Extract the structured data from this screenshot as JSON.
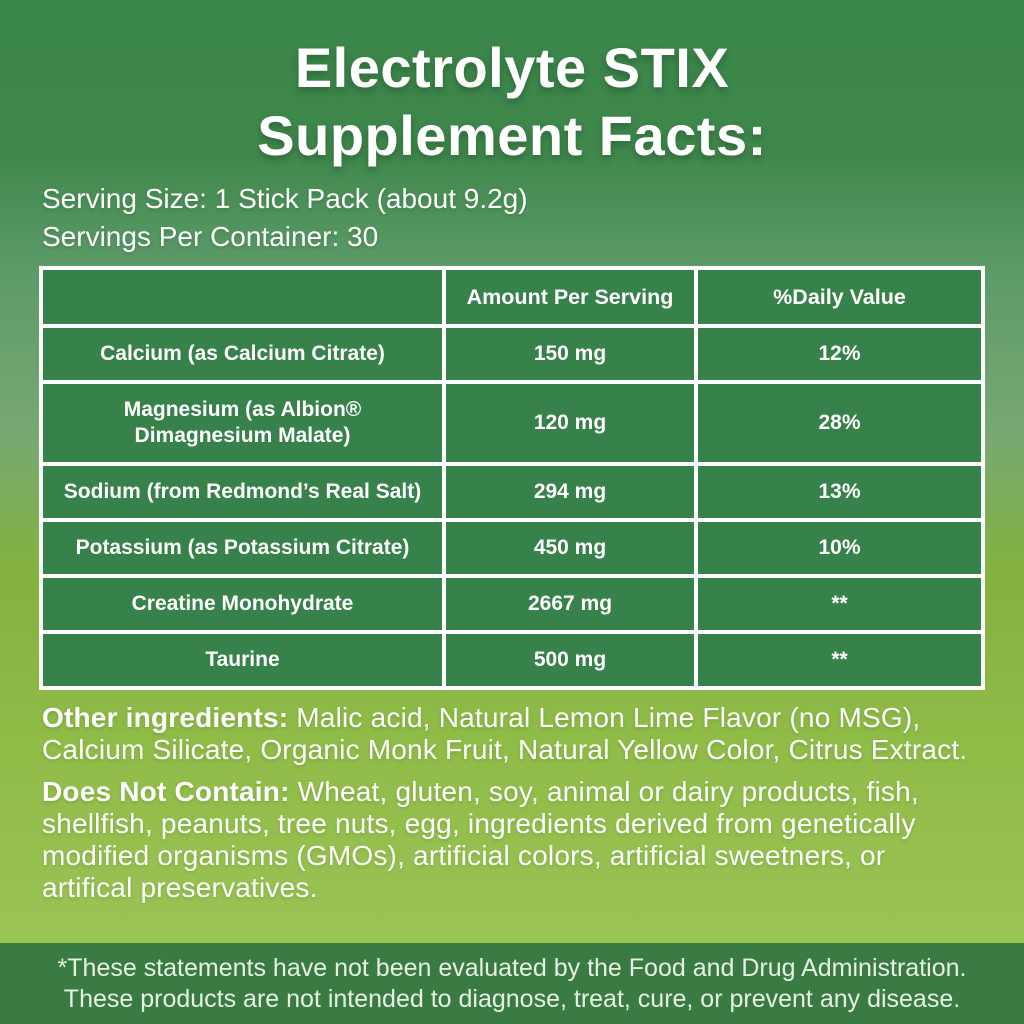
{
  "title": {
    "line1": "Electrolyte STIX",
    "line2": "Supplement Facts:"
  },
  "serving_info": {
    "serving_size": "Serving Size: 1 Stick Pack (about 9.2g)",
    "servings_per_container": "Servings Per Container: 30"
  },
  "supplement_table": {
    "headers": {
      "nutrient": "",
      "amount": "Amount Per Serving",
      "daily_value": "%Daily Value"
    },
    "rows": [
      {
        "name": "Calcium (as Calcium Citrate)",
        "amount": "150 mg",
        "daily_value": "12%"
      },
      {
        "name": "Magnesium (as Albion® Dimagnesium Malate)",
        "amount": "120 mg",
        "daily_value": "28%"
      },
      {
        "name": "Sodium (from Redmond’s Real Salt)",
        "amount": "294 mg",
        "daily_value": "13%"
      },
      {
        "name": "Potassium (as Potassium Citrate)",
        "amount": "450 mg",
        "daily_value": "10%"
      },
      {
        "name": "Creatine Monohydrate",
        "amount": "2667 mg",
        "daily_value": "**"
      },
      {
        "name": "Taurine",
        "amount": "500 mg",
        "daily_value": "**"
      }
    ]
  },
  "other_ingredients": {
    "label": "Other ingredients:",
    "text": "Malic acid, Natural Lemon Lime Flavor (no MSG), Calcium Silicate, Organic Monk Fruit, Natural Yellow Color, Citrus Extract."
  },
  "does_not_contain": {
    "label": "Does Not Contain:",
    "text": "Wheat, gluten, soy, animal or dairy products, fish, shellfish, peanuts, tree nuts, egg, ingredients derived from genetically modified organisms (GMOs), artificial colors, artificial sweetners, or artifical preservatives."
  },
  "disclaimer": {
    "line1": "*These statements have not been evaluated by the Food and Drug Administration.",
    "line2": "These products are not intended to diagnose, treat, cure, or prevent any disease."
  },
  "colors": {
    "background_top": "#3a8549",
    "background_mid_sage": "#77a873",
    "background_yellow_green": "#83b23f",
    "background_bottom": "#9cc65a",
    "table_cell_green": "#37814a",
    "table_border_white": "#ffffff",
    "footer_bar_green": "#3a7b44",
    "text_white": "#ffffff",
    "footer_text": "#e7f1e3"
  }
}
